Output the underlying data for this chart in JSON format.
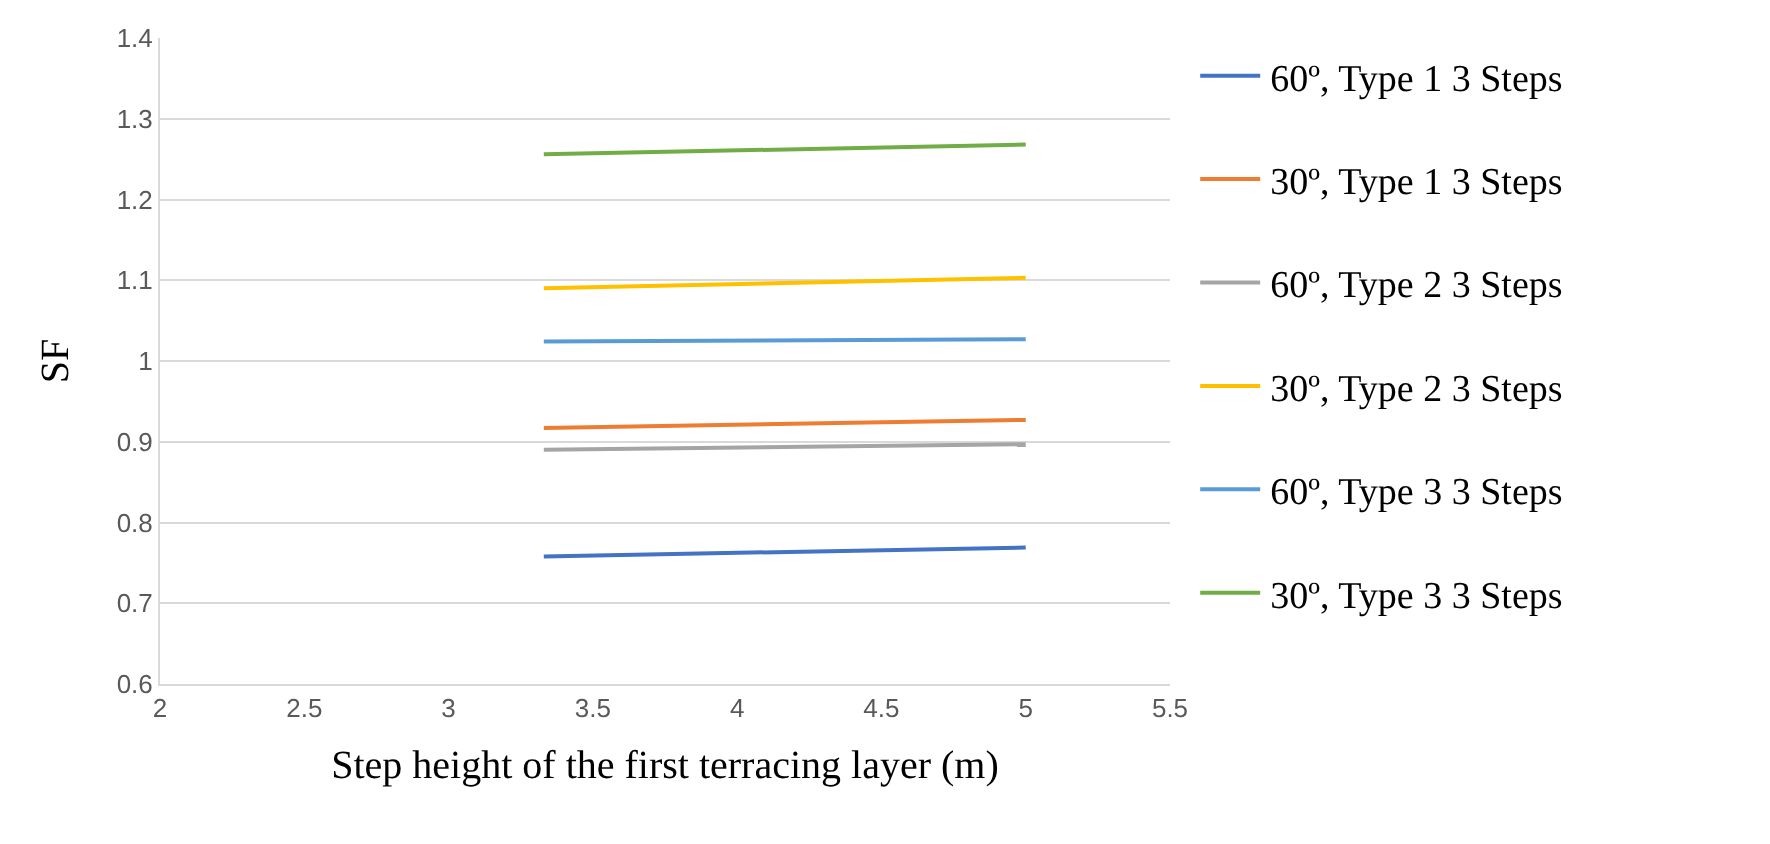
{
  "chart_data": {
    "type": "line",
    "xlabel": "Step height of the first terracing layer (m)",
    "ylabel": "SF",
    "x": [
      3.33,
      5
    ],
    "series": [
      {
        "name": "60º, Type 1 3 Steps",
        "color": "#4472c4",
        "values": [
          0.758,
          0.769
        ]
      },
      {
        "name": "30º, Type 1 3 Steps",
        "color": "#ed7d31",
        "values": [
          0.917,
          0.927
        ]
      },
      {
        "name": "60º, Type 2 3 Steps",
        "color": "#a5a5a5",
        "values": [
          0.89,
          0.897
        ]
      },
      {
        "name": "30º, Type 2 3 Steps",
        "color": "#ffc000",
        "values": [
          1.09,
          1.103
        ]
      },
      {
        "name": "60º, Type 3 3 Steps",
        "color": "#5b9bd5",
        "values": [
          1.024,
          1.027
        ]
      },
      {
        "name": "30º, Type 3 3 Steps",
        "color": "#70ad47",
        "values": [
          1.256,
          1.268
        ]
      }
    ],
    "xlim": [
      2,
      5.5
    ],
    "xticks": [
      2,
      2.5,
      3,
      3.5,
      4,
      4.5,
      5,
      5.5
    ],
    "ylim": [
      0.6,
      1.4
    ],
    "yticks": [
      0.6,
      0.7,
      0.8,
      0.9,
      1,
      1.1,
      1.2,
      1.3,
      1.4
    ],
    "grid": "y",
    "legend": "right",
    "marker": "none",
    "line_style": "solid"
  }
}
